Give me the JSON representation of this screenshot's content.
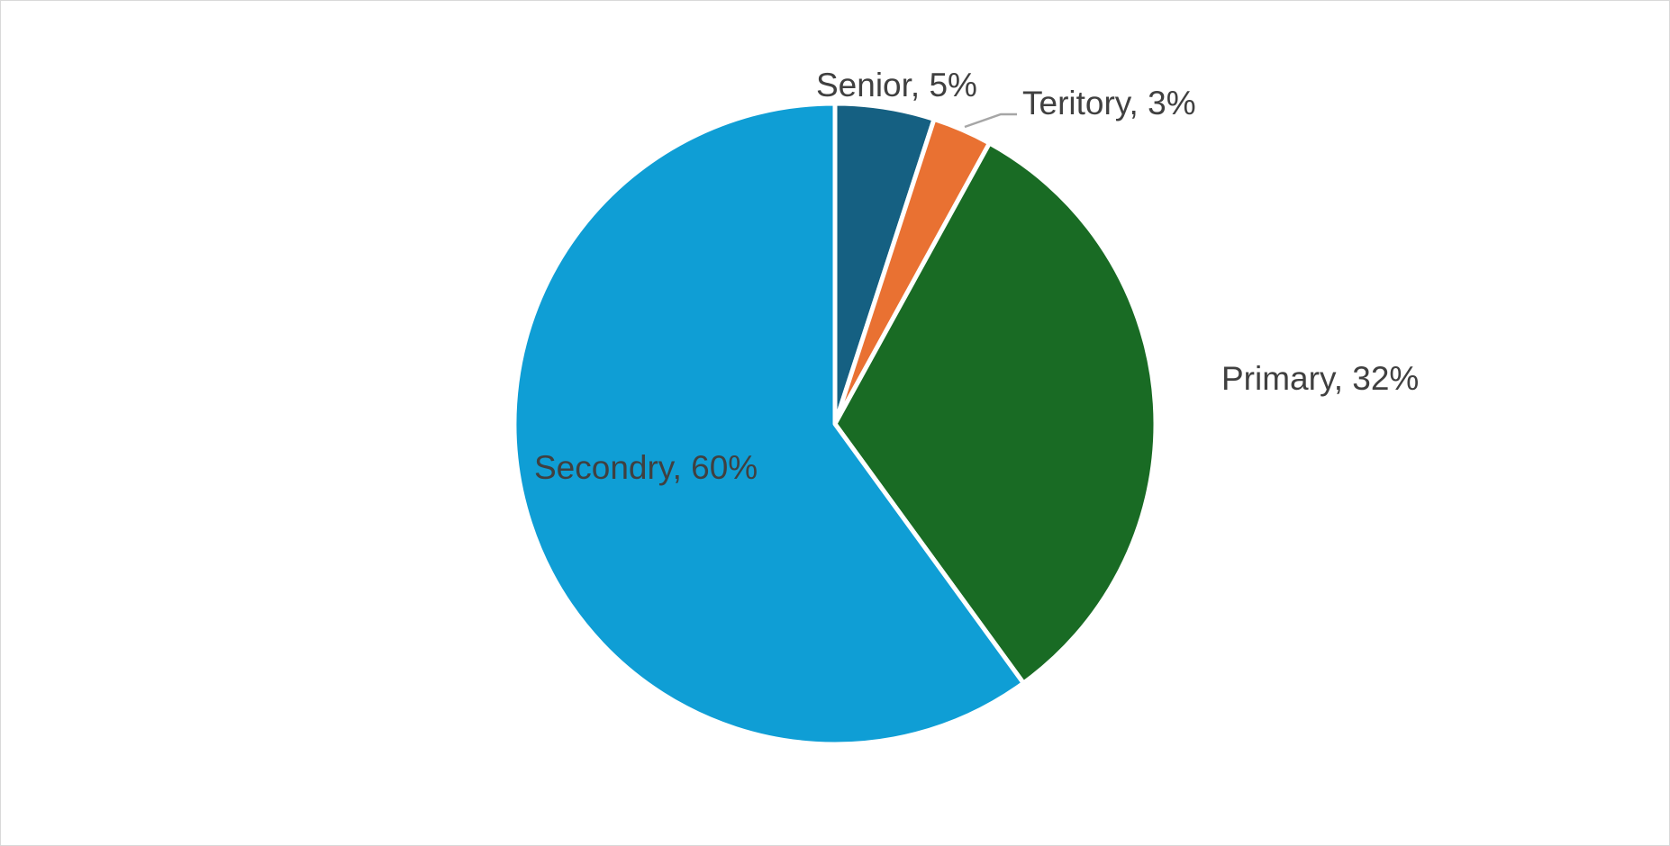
{
  "chart_data": {
    "type": "pie",
    "title": "",
    "legend": "none",
    "start_angle_deg": 0,
    "direction": "clockwise",
    "slices": [
      {
        "label": "Senior",
        "value": 5,
        "display": "5%",
        "color": "#156082"
      },
      {
        "label": "Teritory",
        "value": 3,
        "display": "3%",
        "color": "#E97132"
      },
      {
        "label": "Primary",
        "value": 32,
        "display": "32%",
        "color": "#196B24"
      },
      {
        "label": "Secondry",
        "value": 60,
        "display": "60%",
        "color": "#0F9ED5"
      }
    ]
  }
}
